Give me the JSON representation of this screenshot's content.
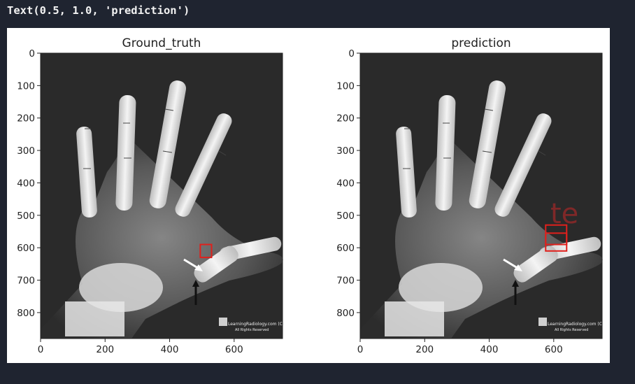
{
  "output": {
    "text": "Text(0.5, 1.0, 'prediction')"
  },
  "figure": {
    "panels": [
      {
        "id": "ground-truth",
        "title": "Ground_truth",
        "x_ticks": [
          "0",
          "200",
          "400",
          "600"
        ],
        "y_ticks": [
          "0",
          "100",
          "200",
          "300",
          "400",
          "500",
          "600",
          "700",
          "800"
        ],
        "boxes": [
          {
            "x0": 495,
            "y0": 590,
            "x1": 530,
            "y1": 630
          }
        ],
        "overlay_text": ""
      },
      {
        "id": "prediction",
        "title": "prediction",
        "x_ticks": [
          "0",
          "200",
          "400",
          "600"
        ],
        "y_ticks": [
          "0",
          "100",
          "200",
          "300",
          "400",
          "500",
          "600",
          "700",
          "800"
        ],
        "boxes": [
          {
            "x0": 575,
            "y0": 530,
            "x1": 640,
            "y1": 590
          },
          {
            "x0": 575,
            "y0": 555,
            "x1": 640,
            "y1": 610
          }
        ],
        "overlay_text": "te"
      }
    ],
    "watermark": {
      "line1": "LearningRadiology.com (C)",
      "line2": "All Rights Reserved"
    },
    "box_color": "#e0201c"
  }
}
